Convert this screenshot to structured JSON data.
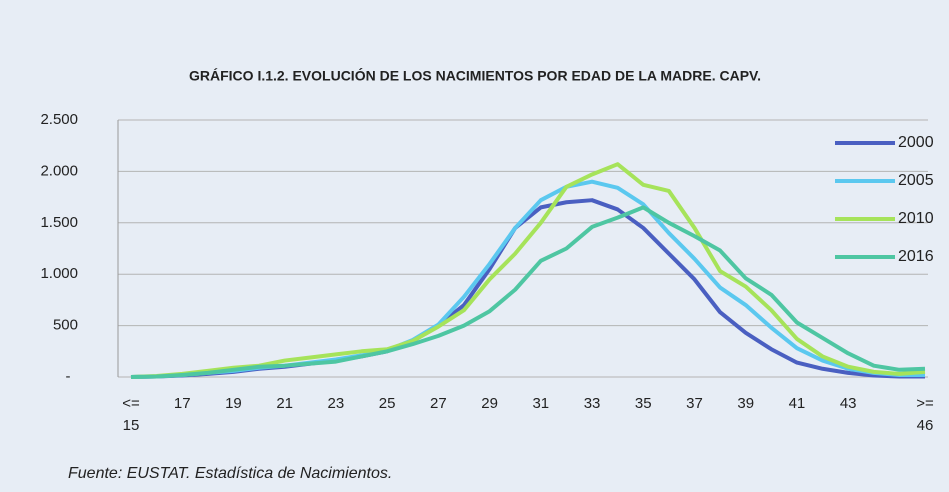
{
  "chart_data": {
    "type": "line",
    "title": "GRÁFICO I.1.2. EVOLUCIÓN DE LOS NACIMIENTOS POR EDAD DE LA MADRE. CAPV.",
    "footnote": "Fuente: EUSTAT. Estadística de Nacimientos.",
    "categories": [
      "<=\n15",
      null,
      "17",
      null,
      "19",
      null,
      "21",
      null,
      "23",
      null,
      "25",
      null,
      "27",
      null,
      "29",
      null,
      "31",
      null,
      "33",
      null,
      "35",
      null,
      "37",
      null,
      "39",
      null,
      "41",
      null,
      "43",
      null,
      null,
      ">=\n46"
    ],
    "ylim": [
      0,
      2500
    ],
    "yticks": [
      {
        "value": 0,
        "label": "-"
      },
      500,
      {
        "value": 1000,
        "label": "1.000"
      },
      {
        "value": 1500,
        "label": "1.500"
      },
      {
        "value": 2000,
        "label": "2.000"
      },
      {
        "value": 2500,
        "label": "2.500"
      }
    ],
    "grid": true,
    "legend": "upper right",
    "series": [
      {
        "name": "2000",
        "color": "#4a5fc1",
        "values": [
          0,
          5,
          15,
          30,
          50,
          80,
          100,
          130,
          160,
          200,
          250,
          350,
          500,
          700,
          1050,
          1450,
          1650,
          1700,
          1720,
          1630,
          1450,
          1200,
          950,
          630,
          430,
          270,
          140,
          80,
          40,
          15,
          5,
          5
        ]
      },
      {
        "name": "2005",
        "color": "#5bc8ef",
        "values": [
          0,
          5,
          20,
          40,
          60,
          90,
          110,
          140,
          170,
          210,
          260,
          360,
          510,
          780,
          1100,
          1450,
          1720,
          1850,
          1900,
          1840,
          1680,
          1400,
          1150,
          870,
          700,
          480,
          280,
          160,
          80,
          40,
          20,
          20
        ]
      },
      {
        "name": "2010",
        "color": "#a6e35a",
        "values": [
          0,
          10,
          30,
          60,
          90,
          110,
          160,
          190,
          220,
          250,
          270,
          350,
          490,
          650,
          950,
          1200,
          1500,
          1850,
          1970,
          2070,
          1870,
          1810,
          1450,
          1030,
          880,
          650,
          370,
          200,
          100,
          50,
          30,
          50
        ]
      },
      {
        "name": "2016",
        "color": "#4ec6a2",
        "values": [
          0,
          5,
          20,
          40,
          70,
          100,
          110,
          130,
          150,
          200,
          250,
          320,
          400,
          500,
          640,
          850,
          1130,
          1250,
          1460,
          1550,
          1650,
          1500,
          1370,
          1230,
          960,
          800,
          530,
          380,
          230,
          110,
          70,
          80
        ]
      }
    ]
  }
}
